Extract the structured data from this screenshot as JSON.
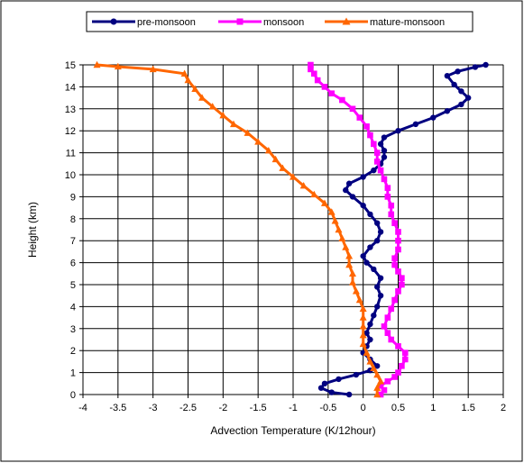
{
  "chart_data": {
    "type": "line",
    "title": "",
    "xlabel": "Advection Temperature (K/12hour)",
    "ylabel": "Height (km)",
    "xlim": [
      -4,
      2
    ],
    "ylim": [
      0,
      15
    ],
    "x_ticks": [
      -4,
      -3.5,
      -3,
      -2.5,
      -2,
      -1.5,
      -1,
      -0.5,
      0,
      0.5,
      1,
      1.5,
      2
    ],
    "y_ticks": [
      0,
      1,
      2,
      3,
      4,
      5,
      6,
      7,
      8,
      9,
      10,
      11,
      12,
      13,
      14,
      15
    ],
    "grid": true,
    "legend_position": "top",
    "series": [
      {
        "name": "pre-monsoon",
        "color": "#000080",
        "marker": "circle",
        "points": [
          [
            -0.2,
            0.0
          ],
          [
            -0.45,
            0.1
          ],
          [
            -0.6,
            0.3
          ],
          [
            -0.55,
            0.5
          ],
          [
            -0.35,
            0.7
          ],
          [
            -0.1,
            0.9
          ],
          [
            0.1,
            1.1
          ],
          [
            0.2,
            1.3
          ],
          [
            0.1,
            1.6
          ],
          [
            0.0,
            1.9
          ],
          [
            0.05,
            2.2
          ],
          [
            0.1,
            2.5
          ],
          [
            0.05,
            2.8
          ],
          [
            0.1,
            3.2
          ],
          [
            0.15,
            3.6
          ],
          [
            0.2,
            4.0
          ],
          [
            0.25,
            4.5
          ],
          [
            0.2,
            4.9
          ],
          [
            0.25,
            5.3
          ],
          [
            0.15,
            5.7
          ],
          [
            0.05,
            6.0
          ],
          [
            0.0,
            6.3
          ],
          [
            0.1,
            6.7
          ],
          [
            0.2,
            7.0
          ],
          [
            0.25,
            7.4
          ],
          [
            0.2,
            7.8
          ],
          [
            0.1,
            8.2
          ],
          [
            0.0,
            8.6
          ],
          [
            -0.15,
            9.0
          ],
          [
            -0.25,
            9.3
          ],
          [
            -0.2,
            9.6
          ],
          [
            0.0,
            9.9
          ],
          [
            0.15,
            10.2
          ],
          [
            0.25,
            10.5
          ],
          [
            0.3,
            10.8
          ],
          [
            0.3,
            11.1
          ],
          [
            0.25,
            11.4
          ],
          [
            0.3,
            11.7
          ],
          [
            0.5,
            12.0
          ],
          [
            0.75,
            12.3
          ],
          [
            1.0,
            12.6
          ],
          [
            1.2,
            12.9
          ],
          [
            1.4,
            13.2
          ],
          [
            1.5,
            13.5
          ],
          [
            1.4,
            13.8
          ],
          [
            1.3,
            14.1
          ],
          [
            1.2,
            14.5
          ],
          [
            1.35,
            14.7
          ],
          [
            1.6,
            14.9
          ],
          [
            1.75,
            15.0
          ]
        ]
      },
      {
        "name": "monsoon",
        "color": "#ff00ff",
        "marker": "square",
        "points": [
          [
            0.25,
            0.0
          ],
          [
            0.3,
            0.2
          ],
          [
            0.25,
            0.4
          ],
          [
            0.35,
            0.6
          ],
          [
            0.45,
            0.8
          ],
          [
            0.5,
            1.0
          ],
          [
            0.55,
            1.3
          ],
          [
            0.6,
            1.6
          ],
          [
            0.6,
            1.9
          ],
          [
            0.5,
            2.2
          ],
          [
            0.4,
            2.5
          ],
          [
            0.35,
            2.8
          ],
          [
            0.3,
            3.1
          ],
          [
            0.35,
            3.5
          ],
          [
            0.4,
            3.9
          ],
          [
            0.45,
            4.3
          ],
          [
            0.5,
            4.7
          ],
          [
            0.55,
            5.0
          ],
          [
            0.55,
            5.3
          ],
          [
            0.5,
            5.6
          ],
          [
            0.45,
            5.9
          ],
          [
            0.45,
            6.2
          ],
          [
            0.5,
            6.6
          ],
          [
            0.5,
            7.0
          ],
          [
            0.5,
            7.4
          ],
          [
            0.45,
            7.8
          ],
          [
            0.4,
            8.2
          ],
          [
            0.4,
            8.6
          ],
          [
            0.35,
            9.0
          ],
          [
            0.35,
            9.4
          ],
          [
            0.3,
            9.8
          ],
          [
            0.25,
            10.2
          ],
          [
            0.2,
            10.6
          ],
          [
            0.2,
            11.0
          ],
          [
            0.15,
            11.4
          ],
          [
            0.1,
            11.8
          ],
          [
            0.05,
            12.2
          ],
          [
            -0.05,
            12.6
          ],
          [
            -0.15,
            13.0
          ],
          [
            -0.3,
            13.4
          ],
          [
            -0.45,
            13.7
          ],
          [
            -0.55,
            14.0
          ],
          [
            -0.65,
            14.3
          ],
          [
            -0.7,
            14.6
          ],
          [
            -0.75,
            14.8
          ],
          [
            -0.75,
            15.0
          ]
        ]
      },
      {
        "name": "mature-monsoon",
        "color": "#ff6600",
        "marker": "triangle",
        "points": [
          [
            0.2,
            0.0
          ],
          [
            0.2,
            0.3
          ],
          [
            0.25,
            0.6
          ],
          [
            0.2,
            0.9
          ],
          [
            0.15,
            1.2
          ],
          [
            0.1,
            1.5
          ],
          [
            0.05,
            1.9
          ],
          [
            0.0,
            2.3
          ],
          [
            0.0,
            2.7
          ],
          [
            0.0,
            3.1
          ],
          [
            0.0,
            3.5
          ],
          [
            0.0,
            3.9
          ],
          [
            -0.05,
            4.3
          ],
          [
            -0.1,
            4.7
          ],
          [
            -0.15,
            5.1
          ],
          [
            -0.15,
            5.5
          ],
          [
            -0.2,
            5.9
          ],
          [
            -0.2,
            6.3
          ],
          [
            -0.25,
            6.7
          ],
          [
            -0.3,
            7.1
          ],
          [
            -0.35,
            7.5
          ],
          [
            -0.4,
            7.9
          ],
          [
            -0.45,
            8.3
          ],
          [
            -0.55,
            8.7
          ],
          [
            -0.7,
            9.1
          ],
          [
            -0.85,
            9.5
          ],
          [
            -1.0,
            9.9
          ],
          [
            -1.15,
            10.3
          ],
          [
            -1.25,
            10.7
          ],
          [
            -1.35,
            11.1
          ],
          [
            -1.5,
            11.5
          ],
          [
            -1.65,
            11.9
          ],
          [
            -1.85,
            12.3
          ],
          [
            -2.0,
            12.7
          ],
          [
            -2.15,
            13.1
          ],
          [
            -2.3,
            13.5
          ],
          [
            -2.4,
            13.9
          ],
          [
            -2.5,
            14.3
          ],
          [
            -2.55,
            14.6
          ],
          [
            -3.0,
            14.8
          ],
          [
            -3.5,
            14.92
          ],
          [
            -3.8,
            15.0
          ]
        ]
      }
    ]
  }
}
